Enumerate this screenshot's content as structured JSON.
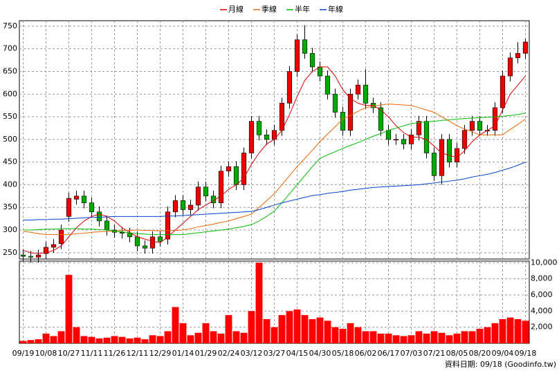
{
  "chart_data": {
    "type": "candlestick",
    "legend": [
      {
        "name": "月線",
        "color": "#dd0000"
      },
      {
        "name": "季線",
        "color": "#ee6600"
      },
      {
        "name": "半年",
        "color": "#00bb00"
      },
      {
        "name": "年線",
        "color": "#0044cc"
      }
    ],
    "categories": [
      "09/19",
      null,
      null,
      "10/08",
      null,
      null,
      "10/27",
      null,
      null,
      "11/11",
      null,
      null,
      "11/26",
      null,
      null,
      "12/11",
      null,
      null,
      "12/29",
      null,
      null,
      "01/14",
      null,
      null,
      "01/29",
      null,
      null,
      "02/24",
      null,
      null,
      "03/12",
      null,
      null,
      "03/27",
      null,
      null,
      "04/15",
      null,
      null,
      "04/30",
      null,
      null,
      "05/18",
      null,
      null,
      "06/02",
      null,
      null,
      "06/17",
      null,
      null,
      "07/03",
      null,
      null,
      "07/21",
      null,
      null,
      "08/05",
      null,
      null,
      "08/20",
      null,
      null,
      "09/04",
      null,
      null,
      "09/18"
    ],
    "open": [
      245,
      242,
      240,
      248,
      262,
      270,
      330,
      368,
      375,
      360,
      340,
      320,
      300,
      295,
      293,
      285,
      265,
      260,
      285,
      280,
      340,
      365,
      345,
      355,
      395,
      375,
      360,
      430,
      440,
      400,
      470,
      540,
      510,
      500,
      520,
      580,
      650,
      720,
      690,
      660,
      640,
      600,
      560,
      520,
      600,
      620,
      580,
      570,
      520,
      500,
      500,
      490,
      510,
      540,
      470,
      420,
      500,
      450,
      480,
      520,
      540,
      520,
      520,
      570,
      640,
      680,
      690
    ],
    "high": [
      257,
      254,
      257,
      274,
      280,
      312,
      382,
      387,
      387,
      372,
      352,
      332,
      312,
      307,
      305,
      297,
      277,
      297,
      297,
      352,
      377,
      377,
      367,
      407,
      407,
      387,
      442,
      452,
      452,
      482,
      552,
      552,
      522,
      532,
      592,
      662,
      732,
      752,
      702,
      672,
      652,
      612,
      572,
      612,
      632,
      655,
      592,
      582,
      532,
      512,
      512,
      522,
      552,
      552,
      482,
      512,
      512,
      492,
      532,
      552,
      552,
      532,
      582,
      652,
      692,
      715,
      722
    ],
    "low": [
      230,
      228,
      228,
      236,
      250,
      258,
      318,
      356,
      348,
      328,
      308,
      288,
      283,
      281,
      273,
      253,
      248,
      248,
      263,
      268,
      328,
      333,
      333,
      343,
      363,
      348,
      348,
      418,
      388,
      388,
      458,
      498,
      488,
      488,
      508,
      568,
      638,
      678,
      648,
      628,
      588,
      548,
      508,
      508,
      588,
      568,
      558,
      508,
      488,
      488,
      478,
      478,
      498,
      458,
      408,
      400,
      438,
      438,
      468,
      508,
      508,
      508,
      508,
      558,
      628,
      668,
      678
    ],
    "close": [
      242,
      240,
      245,
      262,
      268,
      300,
      370,
      375,
      360,
      340,
      320,
      300,
      295,
      293,
      285,
      265,
      260,
      285,
      275,
      340,
      365,
      345,
      355,
      395,
      375,
      360,
      430,
      440,
      400,
      470,
      540,
      510,
      500,
      520,
      580,
      650,
      720,
      690,
      660,
      640,
      600,
      560,
      520,
      600,
      620,
      580,
      570,
      520,
      500,
      500,
      490,
      510,
      540,
      470,
      420,
      500,
      450,
      480,
      520,
      540,
      520,
      520,
      570,
      640,
      680,
      690,
      715
    ],
    "volume": [
      300,
      400,
      500,
      1200,
      900,
      1500,
      8500,
      2000,
      900,
      800,
      600,
      700,
      900,
      800,
      600,
      700,
      500,
      1000,
      900,
      1500,
      4500,
      2500,
      1000,
      1300,
      2500,
      1500,
      1200,
      3500,
      1500,
      1300,
      4000,
      10000,
      3000,
      2000,
      3500,
      4000,
      4200,
      3500,
      3000,
      3200,
      2800,
      2000,
      1800,
      2500,
      2000,
      1500,
      1500,
      1200,
      1200,
      1000,
      900,
      1000,
      1500,
      1200,
      1500,
      1300,
      1000,
      1200,
      1500,
      1500,
      1800,
      2000,
      2500,
      3000,
      3200,
      3000,
      2800
    ],
    "series": [
      {
        "name": "月線",
        "values": [
          255,
          250,
          248,
          250,
          255,
          265,
          285,
          305,
          320,
          330,
          335,
          330,
          320,
          305,
          295,
          285,
          280,
          275,
          272,
          285,
          300,
          315,
          330,
          345,
          355,
          365,
          375,
          390,
          400,
          415,
          445,
          470,
          490,
          500,
          520,
          555,
          595,
          630,
          650,
          660,
          660,
          640,
          610,
          590,
          580,
          575,
          575,
          565,
          550,
          530,
          515,
          505,
          505,
          500,
          485,
          470,
          465,
          460,
          475,
          495,
          510,
          520,
          530,
          565,
          600,
          620,
          640
        ]
      },
      {
        "name": "季線",
        "values": [
          297,
          295,
          292,
          290,
          290,
          290,
          290,
          292,
          293,
          295,
          296,
          297,
          298,
          299,
          299,
          300,
          299,
          299,
          298,
          299,
          299,
          300,
          303,
          307,
          310,
          313,
          317,
          320,
          325,
          330,
          335,
          350,
          365,
          380,
          400,
          420,
          440,
          458,
          476,
          495,
          512,
          528,
          545,
          553,
          562,
          570,
          573,
          576,
          578,
          577,
          576,
          575,
          570,
          565,
          560,
          550,
          540,
          530,
          523,
          517,
          510,
          510,
          510,
          510,
          522,
          533,
          545
        ]
      },
      {
        "name": "半年",
        "values": [
          300,
          300,
          301,
          302,
          302,
          303,
          303,
          303,
          302,
          302,
          301,
          300,
          298,
          296,
          294,
          292,
          291,
          290,
          290,
          290,
          290,
          290,
          292,
          294,
          296,
          298,
          300,
          302,
          305,
          308,
          312,
          320,
          330,
          342,
          360,
          380,
          400,
          420,
          440,
          458,
          466,
          473,
          480,
          487,
          493,
          500,
          507,
          513,
          520,
          525,
          530,
          535,
          537,
          539,
          540,
          542,
          543,
          545,
          546,
          547,
          548,
          549,
          550,
          551,
          553,
          555,
          558
        ]
      },
      {
        "name": "年線",
        "values": [
          322,
          322,
          323,
          323,
          324,
          324,
          325,
          326,
          327,
          328,
          328,
          329,
          330,
          330,
          330,
          330,
          330,
          330,
          330,
          331,
          331,
          332,
          333,
          334,
          335,
          336,
          337,
          338,
          339,
          340,
          341,
          345,
          350,
          355,
          360,
          364,
          368,
          372,
          376,
          378,
          381,
          383,
          385,
          388,
          390,
          392,
          394,
          395,
          396,
          397,
          398,
          399,
          400,
          402,
          404,
          406,
          408,
          410,
          413,
          417,
          420,
          423,
          427,
          432,
          437,
          443,
          450
        ]
      }
    ],
    "up_color": "#ee0000",
    "down_color": "#00aa00",
    "volume_color": "#ff0000",
    "ylim": [
      236,
      762
    ],
    "yticks": [
      250,
      300,
      350,
      400,
      450,
      500,
      550,
      600,
      650,
      700,
      750
    ],
    "y2lim": [
      0,
      10200
    ],
    "y2ticks": [
      {
        "value": 2000,
        "label": "2,000"
      },
      {
        "value": 4000,
        "label": "4,000"
      },
      {
        "value": 6000,
        "label": "6,000"
      },
      {
        "value": 8000,
        "label": "8,000"
      },
      {
        "value": 10000,
        "label": "10,000"
      }
    ],
    "grid": true,
    "source": "資料日期: 09/18 (Goodinfo.tw)"
  }
}
